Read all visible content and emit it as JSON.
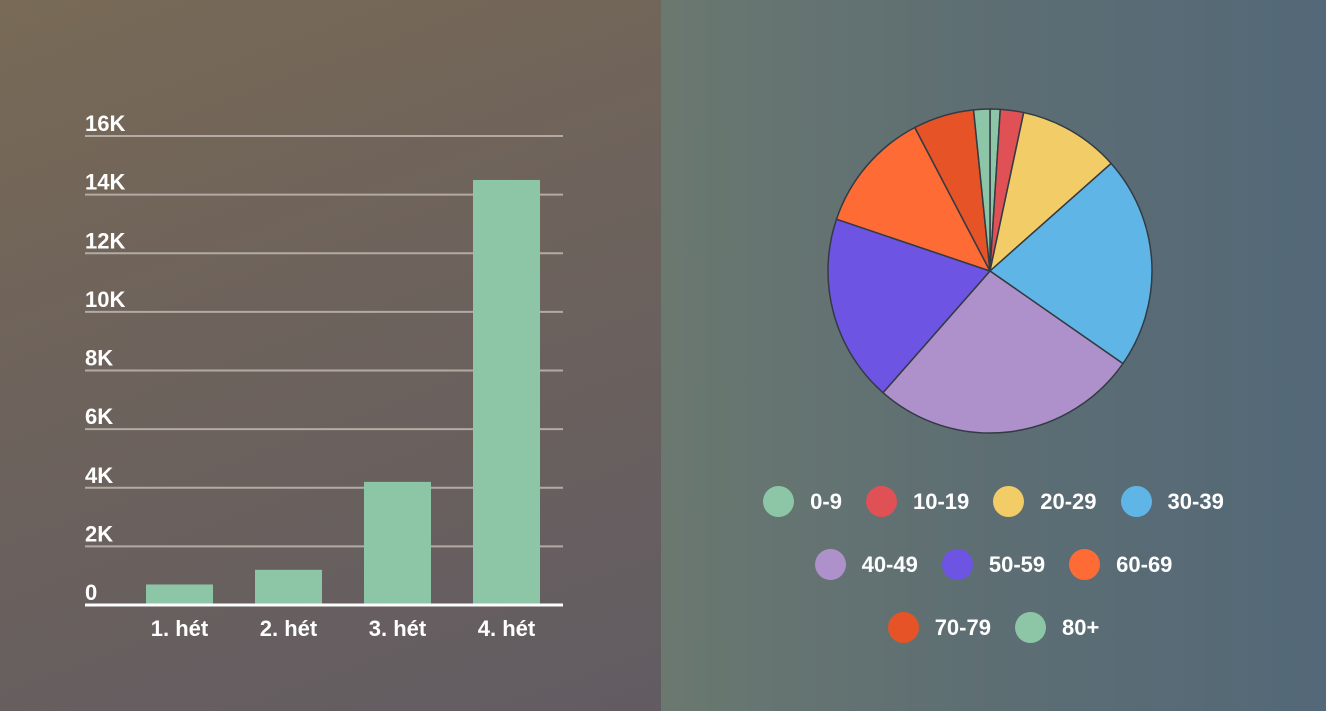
{
  "chart_data": [
    {
      "type": "bar",
      "categories": [
        "1. hét",
        "2. hét",
        "3. hét",
        "4. hét"
      ],
      "values": [
        700,
        1200,
        4200,
        14500
      ],
      "ylim": [
        0,
        16000
      ],
      "yticks": [
        0,
        2000,
        4000,
        6000,
        8000,
        10000,
        12000,
        14000,
        16000
      ],
      "ytick_labels": [
        "0",
        "2K",
        "4K",
        "6K",
        "8K",
        "10K",
        "12K",
        "14K",
        "16K"
      ],
      "grid": true,
      "colors": {
        "bar": "#8dc6a6",
        "grid": "#b3aba3",
        "axis": "#ffffff"
      }
    },
    {
      "type": "pie",
      "legend_placement": "bottom",
      "slices": [
        {
          "label": "0-9",
          "value": 1,
          "color": "#8dc6a6"
        },
        {
          "label": "10-19",
          "value": 2.3,
          "color": "#df5155"
        },
        {
          "label": "20-29",
          "value": 10,
          "color": "#f2cd67"
        },
        {
          "label": "30-39",
          "value": 21,
          "color": "#5fb6e6"
        },
        {
          "label": "40-49",
          "value": 26.5,
          "color": "#ae91ca"
        },
        {
          "label": "50-59",
          "value": 18.5,
          "color": "#6d54e3"
        },
        {
          "label": "60-69",
          "value": 12,
          "color": "#ff6b35"
        },
        {
          "label": "70-79",
          "value": 6,
          "color": "#e55326"
        },
        {
          "label": "80+",
          "value": 1.6,
          "color": "#8dc6a6"
        }
      ]
    }
  ]
}
